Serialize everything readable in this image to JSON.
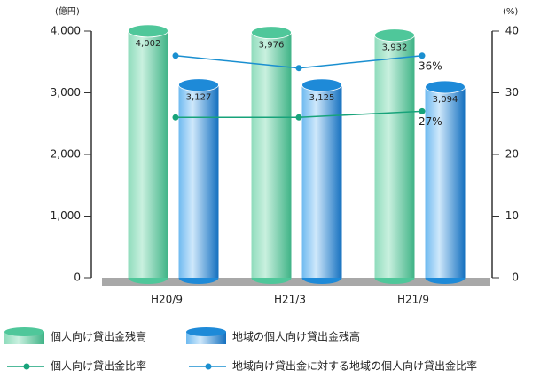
{
  "chart_data": {
    "type": "bar",
    "y_unit": "(億円)",
    "y2_unit": "(%)",
    "categories": [
      "H20/9",
      "H21/3",
      "H21/9"
    ],
    "series": [
      {
        "name": "個人向け貸出金残高",
        "color": "#4fc79a",
        "values": [
          4002,
          3976,
          3932
        ],
        "value_labels": [
          "4,002",
          "3,976",
          "3,932"
        ]
      },
      {
        "name": "地域の個人向け貸出金残高",
        "color": "#1e8ad8",
        "values": [
          3127,
          3125,
          3094
        ],
        "value_labels": [
          "3,127",
          "3,125",
          "3,094"
        ]
      },
      {
        "name": "個人向け貸出金比率",
        "type": "line",
        "axis": "y2",
        "color": "#17a37a",
        "values": [
          26,
          26,
          27
        ],
        "value_labels": [
          null,
          null,
          "27%"
        ]
      },
      {
        "name": "地域向け貸出金に対する地域の個人向け貸出金比率",
        "type": "line",
        "axis": "y2",
        "color": "#1a8fd0",
        "values": [
          36,
          34,
          36
        ],
        "value_labels": [
          null,
          null,
          "36%"
        ]
      }
    ],
    "ylim": [
      0,
      4000
    ],
    "yticks": [
      0,
      {
        "value": 1000,
        "label": "1,000"
      },
      {
        "value": 2000,
        "label": "2,000"
      },
      {
        "value": 3000,
        "label": "3,000"
      },
      {
        "value": 4000,
        "label": "4,000"
      }
    ],
    "y2lim": [
      0,
      40
    ],
    "y2ticks": [
      0,
      10,
      20,
      30,
      40
    ]
  }
}
